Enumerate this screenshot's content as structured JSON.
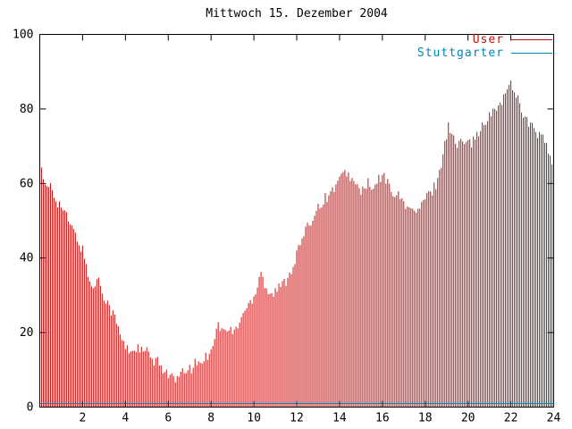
{
  "window": {
    "title": "Mittwoch 15. Dezember 2004"
  },
  "chart_data": {
    "type": "bar",
    "subtype": "impulses",
    "title": "Mittwoch 15. Dezember 2004",
    "xlabel": "",
    "ylabel": "",
    "xlim": [
      0,
      24
    ],
    "ylim": [
      0,
      100
    ],
    "x_ticks": [
      2,
      4,
      6,
      8,
      10,
      12,
      14,
      16,
      18,
      20,
      22,
      24
    ],
    "y_ticks": [
      0,
      20,
      40,
      60,
      80,
      100
    ],
    "grid": false,
    "legend_position": "top-right",
    "frame_color": "#000000",
    "background_color": "#ffffff",
    "impulse_step_hours": 0.083333,
    "series": [
      {
        "name": "User",
        "color": "#cc1111",
        "style": "impulses",
        "x": [
          0.0,
          0.08,
          0.17,
          0.33,
          0.5,
          0.67,
          0.83,
          1.0,
          1.17,
          1.33,
          1.5,
          1.67,
          1.83,
          2.0,
          2.17,
          2.33,
          2.5,
          2.67,
          2.83,
          3.0,
          3.17,
          3.33,
          3.5,
          3.67,
          3.83,
          4.0,
          4.25,
          4.5,
          4.75,
          5.0,
          5.17,
          5.33,
          5.5,
          5.67,
          5.83,
          6.0,
          6.17,
          6.33,
          6.5,
          6.67,
          6.83,
          7.0,
          7.17,
          7.33,
          7.5,
          7.67,
          7.83,
          8.0,
          8.17,
          8.33,
          8.5,
          8.67,
          8.83,
          9.0,
          9.17,
          9.33,
          9.5,
          9.67,
          9.83,
          10.0,
          10.17,
          10.33,
          10.5,
          10.67,
          10.83,
          11.0,
          11.17,
          11.33,
          11.5,
          11.67,
          11.83,
          12.0,
          12.17,
          12.33,
          12.5,
          12.67,
          12.83,
          13.0,
          13.17,
          13.33,
          13.5,
          13.67,
          13.83,
          14.0,
          14.17,
          14.33,
          14.5,
          14.67,
          14.83,
          15.0,
          15.17,
          15.33,
          15.5,
          15.67,
          15.83,
          16.0,
          16.17,
          16.33,
          16.5,
          16.67,
          16.83,
          17.0,
          17.17,
          17.33,
          17.5,
          17.67,
          17.83,
          18.0,
          18.17,
          18.33,
          18.5,
          18.67,
          18.83,
          19.0,
          19.08,
          19.17,
          19.33,
          19.5,
          19.67,
          19.83,
          20.0,
          20.17,
          20.33,
          20.5,
          20.67,
          20.83,
          21.0,
          21.17,
          21.33,
          21.5,
          21.67,
          21.83,
          22.0,
          22.17,
          22.33,
          22.5,
          22.67,
          22.83,
          23.0,
          23.17,
          23.33,
          23.5,
          23.67,
          23.83,
          24.0
        ],
        "values": [
          70,
          65,
          60,
          58,
          60,
          57,
          55,
          54,
          52,
          50,
          48,
          46,
          44,
          42,
          38,
          34,
          31,
          35,
          33,
          30,
          28,
          26,
          24,
          21,
          18,
          16,
          15,
          16,
          15,
          15,
          13,
          12,
          12,
          11,
          10,
          9,
          8,
          7,
          8,
          9,
          10,
          10,
          11,
          12,
          12,
          13,
          14,
          16,
          19,
          22,
          21,
          20,
          21,
          20,
          21,
          23,
          25,
          27,
          28,
          30,
          33,
          37,
          33,
          31,
          30,
          31,
          32,
          33,
          34,
          36,
          38,
          41,
          44,
          46,
          48,
          50,
          52,
          54,
          55,
          56,
          57,
          58,
          60,
          61,
          62,
          63,
          62,
          60,
          59,
          58,
          59,
          60,
          58,
          59,
          61,
          62,
          61,
          59,
          58,
          57,
          56,
          55,
          54,
          53,
          52,
          53,
          54,
          56,
          57,
          58,
          60,
          63,
          68,
          73,
          77,
          74,
          72,
          70,
          71,
          72,
          73,
          71,
          72,
          74,
          75,
          76,
          78,
          79,
          80,
          82,
          83,
          85,
          87,
          85,
          83,
          80,
          78,
          76,
          75,
          74,
          73,
          72,
          70,
          67,
          63
        ]
      },
      {
        "name": "Stuttgarter",
        "color": "#0088bb",
        "style": "line",
        "x": [
          0,
          24
        ],
        "values": [
          1,
          1
        ]
      }
    ]
  }
}
